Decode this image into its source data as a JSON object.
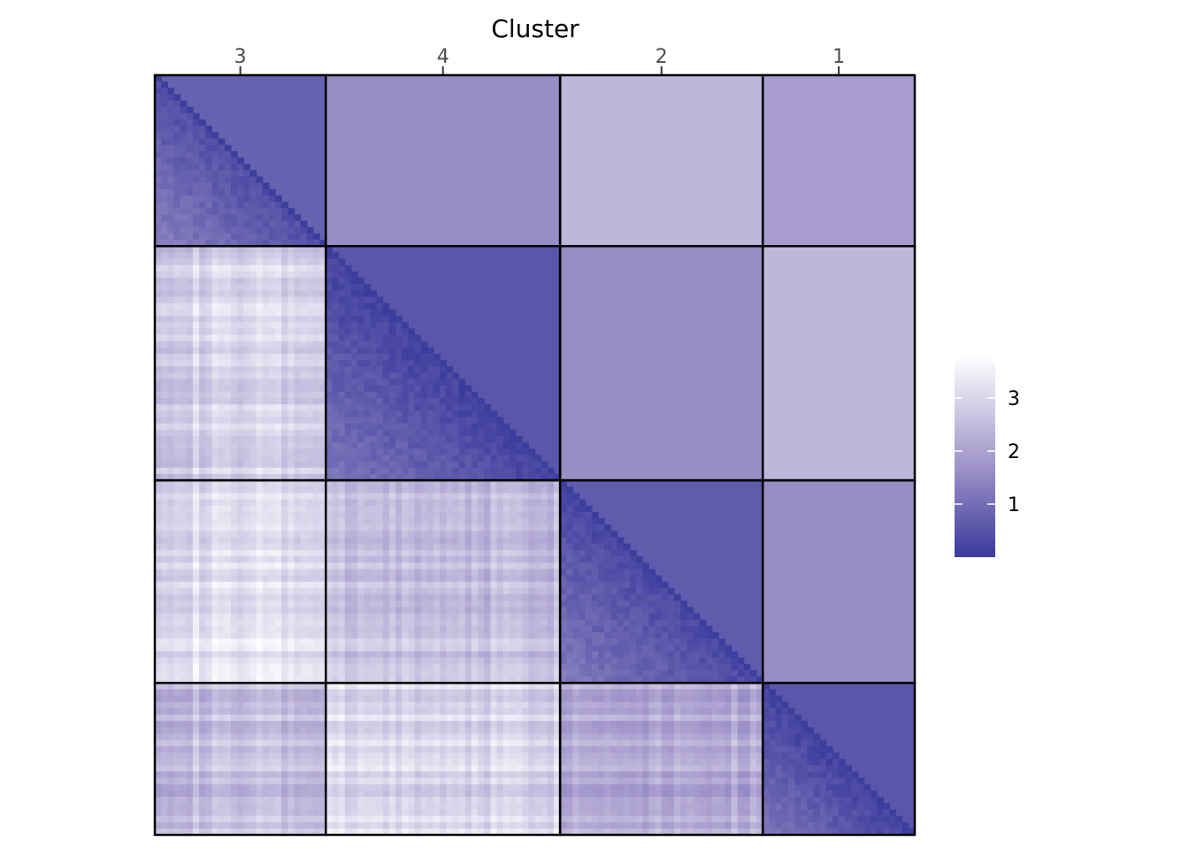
{
  "chart_data": {
    "type": "heatmap",
    "title": "Cluster",
    "clusters": [
      {
        "label": "3",
        "size": 27
      },
      {
        "label": "4",
        "size": 37
      },
      {
        "label": "2",
        "size": 32
      },
      {
        "label": "1",
        "size": 24
      }
    ],
    "block_means": [
      [
        0.6,
        1.6,
        2.4,
        1.9
      ],
      [
        2.9,
        0.4,
        1.6,
        2.4
      ],
      [
        3.2,
        2.6,
        0.5,
        1.6
      ],
      [
        2.5,
        3.0,
        2.2,
        0.4
      ]
    ],
    "legend": {
      "ticks": [
        1,
        2,
        3
      ],
      "range": [
        0,
        3.8
      ],
      "low_color": "#3a3a9c",
      "mid_color": "#9f93c9",
      "high_color": "#ffffff",
      "placement": "right"
    },
    "grid": false
  }
}
